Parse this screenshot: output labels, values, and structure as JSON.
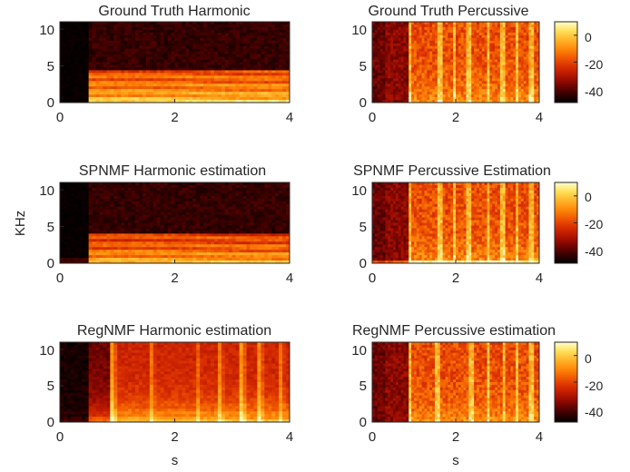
{
  "figure": {
    "ylabel": "KHz",
    "xlabel": "s"
  },
  "colormap": [
    "#000000",
    "#3a0000",
    "#7a0500",
    "#b21400",
    "#d92e00",
    "#f05a00",
    "#ff8a0a",
    "#ffb52a",
    "#ffe05a",
    "#ffffd0"
  ],
  "chart_data": [
    {
      "type": "heatmap",
      "title": "Ground Truth Harmonic",
      "xlim": [
        0,
        4
      ],
      "ylim": [
        0,
        11
      ],
      "xticks": [
        0,
        2,
        4
      ],
      "yticks": [
        0,
        5,
        10
      ],
      "xtick_labels": [
        "0",
        "2",
        "4"
      ],
      "ytick_labels": [
        "0",
        "5",
        "10"
      ],
      "colorbar": false
    },
    {
      "type": "heatmap",
      "title": "Ground Truth Percussive",
      "xlim": [
        0,
        4
      ],
      "ylim": [
        0,
        11
      ],
      "xticks": [
        0,
        2,
        4
      ],
      "yticks": [
        0,
        5,
        10
      ],
      "xtick_labels": [
        "0",
        "2",
        "4"
      ],
      "ytick_labels": [
        "0",
        "5",
        "10"
      ],
      "colorbar": true,
      "colorbar_ticks": [
        0,
        -20,
        -40
      ],
      "colorbar_tick_labels": [
        "0",
        "-20",
        "-40"
      ],
      "colorbar_range": [
        -50,
        10
      ]
    },
    {
      "type": "heatmap",
      "title": "SPNMF Harmonic estimation",
      "xlim": [
        0,
        4
      ],
      "ylim": [
        0,
        11
      ],
      "xticks": [
        0,
        2,
        4
      ],
      "yticks": [
        0,
        5,
        10
      ],
      "xtick_labels": [
        "0",
        "2",
        "4"
      ],
      "ytick_labels": [
        "0",
        "5",
        "10"
      ],
      "colorbar": false
    },
    {
      "type": "heatmap",
      "title": "SPNMF Percussive Estimation",
      "xlim": [
        0,
        4
      ],
      "ylim": [
        0,
        11
      ],
      "xticks": [
        0,
        2,
        4
      ],
      "yticks": [
        0,
        5,
        10
      ],
      "xtick_labels": [
        "0",
        "2",
        "4"
      ],
      "ytick_labels": [
        "0",
        "5",
        "10"
      ],
      "colorbar": true,
      "colorbar_ticks": [
        0,
        -20,
        -40
      ],
      "colorbar_tick_labels": [
        "0",
        "-20",
        "-40"
      ],
      "colorbar_range": [
        -50,
        10
      ]
    },
    {
      "type": "heatmap",
      "title": "RegNMF Harmonic estimation",
      "xlim": [
        0,
        4
      ],
      "ylim": [
        0,
        11
      ],
      "xticks": [
        0,
        2,
        4
      ],
      "yticks": [
        0,
        5,
        10
      ],
      "xtick_labels": [
        "0",
        "2",
        "4"
      ],
      "ytick_labels": [
        "0",
        "5",
        "10"
      ],
      "colorbar": false
    },
    {
      "type": "heatmap",
      "title": "RegNMF Percussive estimation",
      "xlim": [
        0,
        4
      ],
      "ylim": [
        0,
        11
      ],
      "xticks": [
        0,
        2,
        4
      ],
      "yticks": [
        0,
        5,
        10
      ],
      "xtick_labels": [
        "0",
        "2",
        "4"
      ],
      "ytick_labels": [
        "0",
        "5",
        "10"
      ],
      "colorbar": true,
      "colorbar_ticks": [
        0,
        -20,
        -40
      ],
      "colorbar_tick_labels": [
        "0",
        "-20",
        "-40"
      ],
      "colorbar_range": [
        -50,
        10
      ]
    }
  ]
}
